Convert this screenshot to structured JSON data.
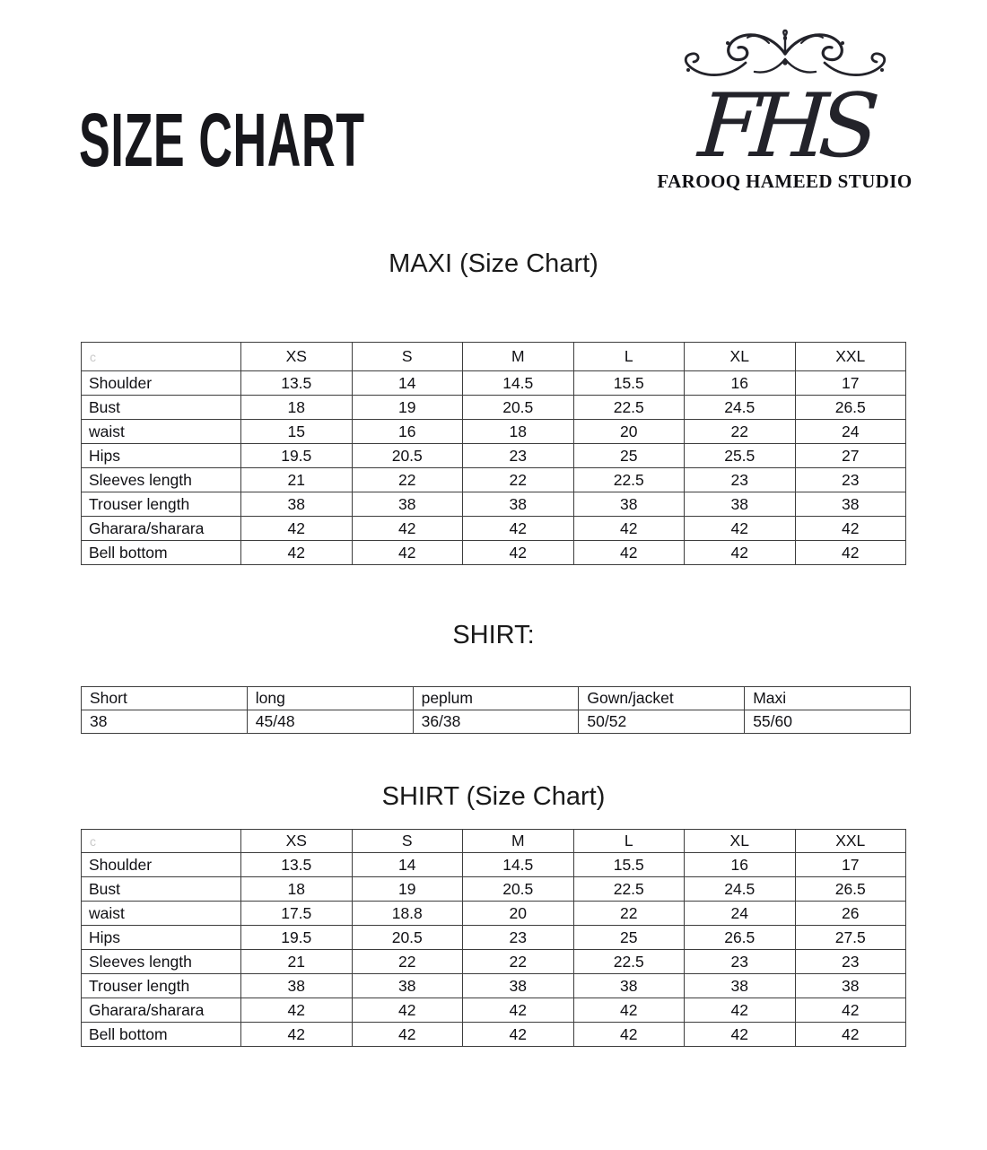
{
  "page": {
    "title": "SIZE CHART"
  },
  "logo": {
    "monogram": "FHS",
    "studio_name": "FAROOQ HAMEED STUDIO",
    "ornament": "flourish-ornament"
  },
  "maxi_table": {
    "heading": "MAXI (Size Chart)",
    "corner_label": "c",
    "columns": [
      "XS",
      "S",
      "M",
      "L",
      "XL",
      "XXL"
    ],
    "rows": [
      {
        "label": "Shoulder",
        "values": [
          "13.5",
          "14",
          "14.5",
          "15.5",
          "16",
          "17"
        ]
      },
      {
        "label": "Bust",
        "values": [
          "18",
          "19",
          "20.5",
          "22.5",
          "24.5",
          "26.5"
        ]
      },
      {
        "label": "waist",
        "values": [
          "15",
          "16",
          "18",
          "20",
          "22",
          "24"
        ]
      },
      {
        "label": "Hips",
        "values": [
          "19.5",
          "20.5",
          "23",
          "25",
          "25.5",
          "27"
        ]
      },
      {
        "label": "Sleeves length",
        "values": [
          "21",
          "22",
          "22",
          "22.5",
          "23",
          "23"
        ]
      },
      {
        "label": "Trouser length",
        "values": [
          "38",
          "38",
          "38",
          "38",
          "38",
          "38"
        ]
      },
      {
        "label": "Gharara/sharara",
        "values": [
          "42",
          "42",
          "42",
          "42",
          "42",
          "42"
        ]
      },
      {
        "label": "Bell bottom",
        "values": [
          "42",
          "42",
          "42",
          "42",
          "42",
          "42"
        ]
      }
    ]
  },
  "shirt_lengths": {
    "heading": "SHIRT:",
    "columns": [
      "Short",
      "long",
      "peplum",
      "Gown/jacket",
      "Maxi"
    ],
    "values": [
      "38",
      "45/48",
      "36/38",
      "50/52",
      "55/60"
    ]
  },
  "shirt_table": {
    "heading": "SHIRT (Size Chart)",
    "corner_label": "c",
    "columns": [
      "XS",
      "S",
      "M",
      "L",
      "XL",
      "XXL"
    ],
    "rows": [
      {
        "label": "Shoulder",
        "values": [
          "13.5",
          "14",
          "14.5",
          "15.5",
          "16",
          "17"
        ]
      },
      {
        "label": "Bust",
        "values": [
          "18",
          "19",
          "20.5",
          "22.5",
          "24.5",
          "26.5"
        ]
      },
      {
        "label": "waist",
        "values": [
          "17.5",
          "18.8",
          "20",
          "22",
          "24",
          "26"
        ]
      },
      {
        "label": "Hips",
        "values": [
          "19.5",
          "20.5",
          "23",
          "25",
          "26.5",
          "27.5"
        ]
      },
      {
        "label": "Sleeves length",
        "values": [
          "21",
          "22",
          "22",
          "22.5",
          "23",
          "23"
        ]
      },
      {
        "label": "Trouser length",
        "values": [
          "38",
          "38",
          "38",
          "38",
          "38",
          "38"
        ]
      },
      {
        "label": "Gharara/sharara",
        "values": [
          "42",
          "42",
          "42",
          "42",
          "42",
          "42"
        ]
      },
      {
        "label": "Bell bottom",
        "values": [
          "42",
          "42",
          "42",
          "42",
          "42",
          "42"
        ]
      }
    ]
  },
  "colors": {
    "table_border": "#3d3d3d",
    "text": "#101014",
    "corner_label": "#c9c9c9",
    "title": "#17171c"
  }
}
